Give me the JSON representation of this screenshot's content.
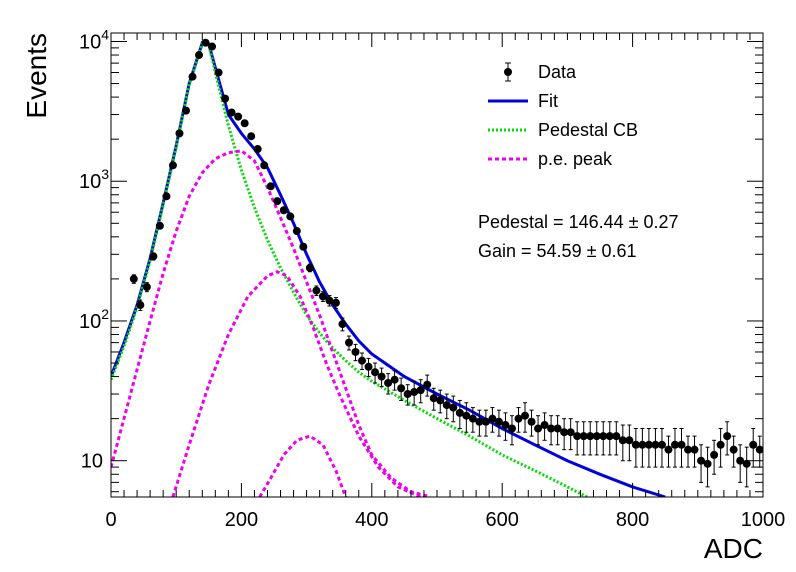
{
  "chart_data": {
    "type": "scatter",
    "xlabel": "ADC",
    "ylabel": "Events",
    "xlim": [
      0,
      1000
    ],
    "ylim": [
      5.5,
      11500
    ],
    "yscale": "log",
    "grid": false,
    "legend_position": "top-right",
    "x_ticks": [
      {
        "value": 0,
        "label": "0"
      },
      {
        "value": 200,
        "label": "200"
      },
      {
        "value": 400,
        "label": "400"
      },
      {
        "value": 600,
        "label": "600"
      },
      {
        "value": 800,
        "label": "800"
      },
      {
        "value": 1000,
        "label": "1000"
      }
    ],
    "y_ticks": [
      {
        "value": 10,
        "base": "10",
        "exp": ""
      },
      {
        "value": 100,
        "base": "10",
        "exp": "2"
      },
      {
        "value": 1000,
        "base": "10",
        "exp": "3"
      },
      {
        "value": 10000,
        "base": "10",
        "exp": "4"
      }
    ],
    "annotations": {
      "pedestal": "Pedestal = 146.44 ± 0.27",
      "gain": "Gain = 54.59 ± 0.61"
    },
    "series": [
      {
        "name": "Data",
        "kind": "points",
        "color": "#000000",
        "x": [
          35,
          45,
          55,
          65,
          75,
          85,
          95,
          105,
          115,
          125,
          135,
          145,
          155,
          165,
          175,
          185,
          195,
          205,
          215,
          225,
          235,
          245,
          255,
          265,
          275,
          285,
          295,
          305,
          315,
          325,
          335,
          345,
          355,
          365,
          375,
          385,
          395,
          405,
          415,
          425,
          435,
          445,
          455,
          465,
          475,
          485,
          495,
          505,
          515,
          525,
          535,
          545,
          555,
          565,
          575,
          585,
          595,
          605,
          615,
          625,
          635,
          645,
          655,
          665,
          675,
          685,
          695,
          705,
          715,
          725,
          735,
          745,
          755,
          765,
          775,
          785,
          795,
          805,
          815,
          825,
          835,
          845,
          855,
          865,
          875,
          885,
          895,
          905,
          915,
          925,
          935,
          945,
          955,
          965,
          975,
          985,
          995
        ],
        "y": [
          200,
          130,
          175,
          290,
          480,
          780,
          1300,
          2200,
          3200,
          5600,
          8000,
          9800,
          9200,
          6000,
          3900,
          3100,
          2900,
          2600,
          2100,
          1700,
          1300,
          920,
          720,
          620,
          560,
          440,
          340,
          240,
          165,
          150,
          140,
          135,
          95,
          70,
          60,
          52,
          47,
          43,
          40,
          36,
          38,
          33,
          30,
          31,
          32,
          35,
          28,
          27,
          25,
          24,
          22,
          21,
          20,
          19,
          19,
          20,
          19,
          18,
          17,
          20,
          21,
          19,
          17,
          18,
          17,
          17,
          16,
          16,
          15,
          15,
          15,
          15,
          15,
          15,
          15,
          14,
          14,
          13,
          13,
          13,
          13,
          13,
          12,
          13,
          13,
          12,
          12,
          10,
          9.5,
          11,
          13,
          15,
          12,
          10,
          9.5,
          13,
          12
        ],
        "err": [
          14,
          11,
          13,
          17,
          22,
          28,
          36,
          47,
          57,
          75,
          89,
          99,
          96,
          77,
          62,
          56,
          54,
          51,
          46,
          41,
          36,
          30,
          27,
          25,
          24,
          21,
          18,
          15,
          13,
          12,
          12,
          12,
          10,
          8,
          8,
          7,
          7,
          7,
          6,
          6,
          6,
          6,
          5,
          6,
          6,
          6,
          5,
          5,
          5,
          5,
          5,
          5,
          4,
          4,
          4,
          4,
          4,
          4,
          4,
          4,
          5,
          4,
          4,
          4,
          4,
          4,
          4,
          4,
          4,
          4,
          4,
          4,
          4,
          4,
          4,
          4,
          4,
          4,
          4,
          4,
          4,
          4,
          3,
          4,
          4,
          3,
          3,
          3,
          3,
          3,
          4,
          4,
          3,
          3,
          3,
          4,
          3
        ]
      },
      {
        "name": "Fit",
        "kind": "line",
        "color": "#0000dd",
        "style": "solid",
        "x": [
          0,
          20,
          40,
          60,
          80,
          100,
          120,
          140,
          150,
          160,
          180,
          200,
          220,
          240,
          260,
          280,
          300,
          320,
          340,
          360,
          380,
          400,
          450,
          500,
          550,
          600,
          650,
          700,
          750,
          800,
          850
        ],
        "y": [
          40,
          70,
          130,
          280,
          700,
          1800,
          5000,
          9800,
          9600,
          6500,
          3000,
          2200,
          1700,
          1250,
          800,
          500,
          300,
          190,
          130,
          95,
          72,
          58,
          40,
          30,
          23,
          17,
          13,
          10,
          8,
          6.5,
          5.5
        ]
      },
      {
        "name": "Pedestal CB",
        "kind": "line",
        "color": "#00dd00",
        "style": "dotted",
        "x": [
          0,
          20,
          40,
          60,
          80,
          100,
          120,
          140,
          150,
          160,
          180,
          200,
          220,
          240,
          260,
          280,
          300,
          320,
          340,
          360,
          380,
          400,
          450,
          500,
          550,
          600,
          650,
          700,
          730
        ],
        "y": [
          38,
          66,
          125,
          270,
          680,
          1750,
          4900,
          9600,
          9500,
          6000,
          2500,
          1200,
          650,
          380,
          240,
          160,
          110,
          82,
          64,
          52,
          43,
          37,
          27,
          20,
          15,
          11,
          8.5,
          6.5,
          5.5
        ]
      },
      {
        "name": "p.e. peak",
        "kind": "line",
        "color": "#ee00ee",
        "style": "dashed",
        "x": [
          0,
          20,
          40,
          60,
          80,
          100,
          120,
          140,
          160,
          180,
          200,
          220,
          240,
          260,
          280,
          300,
          320,
          340,
          360,
          380,
          400,
          430,
          460,
          490
        ],
        "y": [
          9,
          20,
          45,
          100,
          220,
          440,
          780,
          1150,
          1450,
          1600,
          1650,
          1400,
          900,
          550,
          330,
          190,
          110,
          60,
          33,
          18,
          11,
          7.5,
          6,
          5.5
        ]
      },
      {
        "name": "p.e. peak 2",
        "kind": "line",
        "color": "#ee00ee",
        "style": "dashed",
        "x": [
          95,
          120,
          150,
          180,
          210,
          240,
          255,
          270,
          290,
          310,
          330,
          350,
          380,
          410,
          440,
          475
        ],
        "y": [
          5.5,
          13,
          35,
          80,
          150,
          210,
          225,
          210,
          150,
          90,
          50,
          30,
          15,
          9,
          6.5,
          5.5
        ]
      },
      {
        "name": "p.e. peak 3",
        "kind": "line",
        "color": "#ee00ee",
        "style": "dashed",
        "x": [
          228,
          245,
          265,
          285,
          305,
          325,
          345,
          360
        ],
        "y": [
          5.5,
          7.5,
          11,
          14,
          15,
          13,
          8.5,
          5.5
        ]
      }
    ],
    "legend": [
      {
        "label": "Data",
        "style": "marker",
        "color": "#000000"
      },
      {
        "label": "Fit",
        "style": "solid",
        "color": "#0000dd"
      },
      {
        "label": "Pedestal CB",
        "style": "dotted",
        "color": "#00dd00"
      },
      {
        "label": "p.e. peak",
        "style": "dashed",
        "color": "#ee00ee"
      }
    ]
  }
}
